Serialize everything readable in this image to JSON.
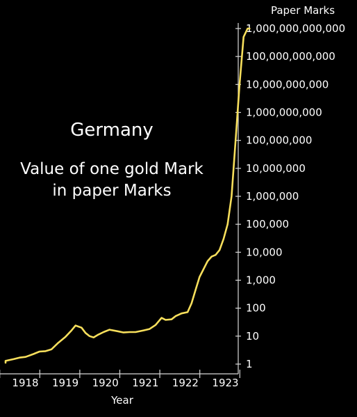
{
  "chart_data": {
    "type": "line",
    "title": "Germany",
    "subtitle_lines": [
      "Value of one gold Mark",
      "in paper Marks"
    ],
    "xlabel": "Year",
    "ylabel": "Paper Marks",
    "yscale": "log10",
    "ylim": [
      1,
      1000000000000
    ],
    "xlim": [
      1917.0,
      1923.9
    ],
    "grid": false,
    "x_ticks": [
      {
        "value": 1918,
        "label": "1918"
      },
      {
        "value": 1919,
        "label": "1919"
      },
      {
        "value": 1920,
        "label": "1920"
      },
      {
        "value": 1921,
        "label": "1921"
      },
      {
        "value": 1922,
        "label": "1922"
      },
      {
        "value": 1923,
        "label": "1923"
      }
    ],
    "y_ticks": [
      {
        "value": 1,
        "label": "1"
      },
      {
        "value": 10,
        "label": "10"
      },
      {
        "value": 100,
        "label": "100"
      },
      {
        "value": 1000,
        "label": "1,000"
      },
      {
        "value": 10000,
        "label": "10,000"
      },
      {
        "value": 100000,
        "label": "100,000"
      },
      {
        "value": 1000000,
        "label": "1,000,000"
      },
      {
        "value": 10000000,
        "label": "10,000,000"
      },
      {
        "value": 100000000,
        "label": "100,000,000"
      },
      {
        "value": 1000000000,
        "label": "1,000,000,000"
      },
      {
        "value": 10000000000,
        "label": "10,000,000,000"
      },
      {
        "value": 100000000000,
        "label": "100,000,000,000"
      },
      {
        "value": 1000000000000,
        "label": "1,000,000,000,000"
      }
    ],
    "series": [
      {
        "color": "#f7df5c",
        "x": [
          1917.0,
          1917.25,
          1917.45,
          1917.6,
          1917.75,
          1917.9,
          1918.0,
          1918.15,
          1918.3,
          1918.5,
          1918.65,
          1918.8,
          1918.95,
          1919.1,
          1919.3,
          1919.45,
          1919.55,
          1919.7,
          1919.8,
          1919.9,
          1920.0,
          1920.1,
          1920.25,
          1920.4,
          1920.6,
          1920.75,
          1920.9,
          1921.05,
          1921.25,
          1921.4,
          1921.55,
          1921.7,
          1921.8,
          1921.95,
          1922.05,
          1922.2,
          1922.35,
          1922.45,
          1922.55,
          1922.65,
          1922.75,
          1922.85,
          1922.95,
          1923.05,
          1923.15,
          1923.25,
          1923.35,
          1923.45,
          1923.55,
          1923.65,
          1923.75,
          1923.85,
          1923.9
        ],
        "y": [
          1.15,
          1.15,
          1.12,
          1.2,
          1.3,
          1.4,
          1.5,
          1.7,
          1.8,
          2.3,
          2.8,
          2.9,
          3.4,
          5.5,
          9.5,
          16,
          24,
          20,
          13,
          10,
          9,
          11,
          14,
          17,
          15,
          13.5,
          14,
          14,
          16,
          18,
          25,
          45,
          38,
          40,
          52,
          65,
          72,
          150,
          450,
          1300,
          2500,
          4800,
          7000,
          8000,
          12000,
          30000,
          100000,
          1000000,
          100000000,
          10000000000,
          500000000000,
          1000000000000,
          1000000000000
        ]
      }
    ]
  }
}
